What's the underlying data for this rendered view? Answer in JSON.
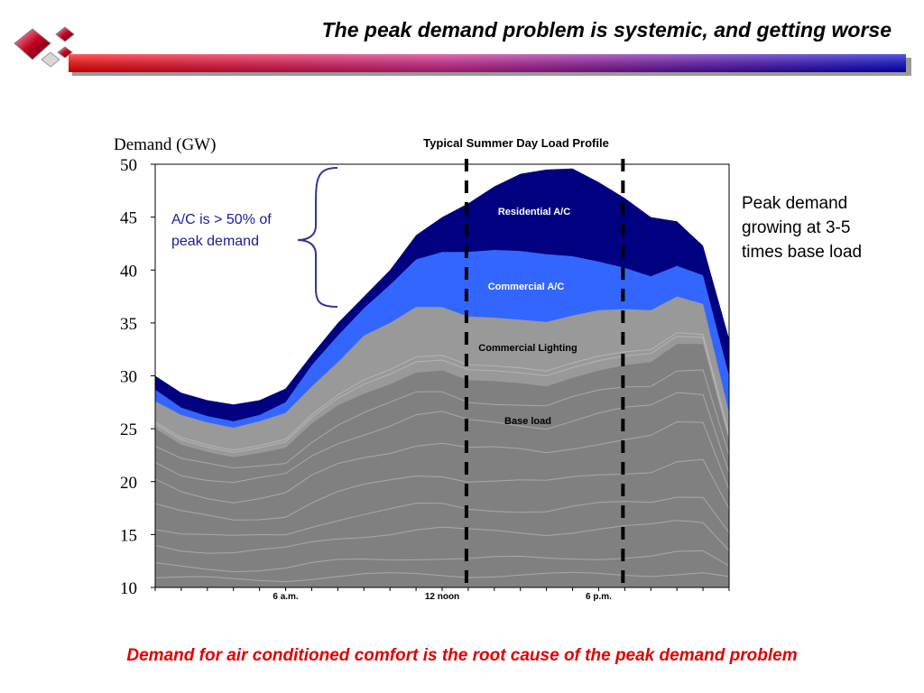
{
  "slide": {
    "title": "The peak demand problem is systemic, and getting worse",
    "footer": "Demand for air conditioned comfort is the root cause of the peak demand problem"
  },
  "colors": {
    "title_bar_left": "#ff0000",
    "title_bar_right": "#0000cc",
    "residential_ac": "#000080",
    "commercial_ac": "#3366ff",
    "commercial_lighting": "#999999",
    "base_load": "#808080",
    "footer_text": "#e00000",
    "callout_text": "#1a1aa0"
  },
  "chart_data": {
    "type": "area",
    "title": "Typical Summer Day Load Profile",
    "ylabel": "Demand (GW)",
    "xlabel": "",
    "ylim": [
      10,
      50
    ],
    "yticks": [
      10,
      15,
      20,
      25,
      30,
      35,
      40,
      45,
      50
    ],
    "x_hours": [
      0,
      1,
      2,
      3,
      4,
      5,
      6,
      7,
      8,
      9,
      10,
      11,
      12,
      13,
      14,
      15,
      16,
      17,
      18,
      19,
      20,
      21,
      22
    ],
    "x_ticks": [
      {
        "hour": 5,
        "label": "6 a.m."
      },
      {
        "hour": 11,
        "label": "12 noon"
      },
      {
        "hour": 17,
        "label": "6 p.m."
      }
    ],
    "peak_window": [
      12,
      18
    ],
    "series": [
      {
        "name": "Base load",
        "top": [
          25.0,
          23.5,
          22.8,
          22.3,
          22.7,
          23.2,
          25.5,
          27.2,
          28.3,
          29.2,
          30.3,
          30.5,
          29.6,
          29.5,
          29.3,
          29.0,
          29.8,
          30.5,
          31.0,
          31.3,
          33.0,
          33.0,
          23.8
        ]
      },
      {
        "name": "Commercial Lighting",
        "top": [
          27.6,
          26.3,
          25.6,
          25.1,
          25.7,
          26.5,
          29.0,
          31.3,
          33.8,
          35.0,
          36.5,
          36.5,
          35.6,
          35.5,
          35.3,
          35.1,
          35.7,
          36.2,
          36.3,
          36.2,
          37.5,
          36.8,
          26.5
        ]
      },
      {
        "name": "Commercial A/C",
        "top": [
          28.7,
          27.0,
          26.2,
          25.7,
          26.3,
          27.5,
          31.0,
          33.8,
          36.4,
          38.6,
          41.0,
          41.7,
          41.7,
          41.9,
          41.8,
          41.5,
          41.3,
          40.8,
          40.2,
          39.4,
          40.4,
          39.5,
          30.0
        ]
      },
      {
        "name": "Residential A/C",
        "top": [
          30.0,
          28.4,
          27.7,
          27.3,
          27.7,
          28.8,
          32.0,
          35.0,
          37.5,
          40.0,
          43.3,
          45.0,
          46.3,
          47.9,
          49.1,
          49.5,
          49.6,
          48.3,
          46.8,
          45.0,
          44.6,
          42.3,
          33.5
        ]
      }
    ],
    "area_labels": [
      "Residential A/C",
      "Commercial A/C",
      "Commercial Lighting",
      "Base load"
    ],
    "callout_left": {
      "line1": "A/C is  > 50% of",
      "line2": "peak demand"
    },
    "callout_right": {
      "line1": "Peak demand",
      "line2": "growing at 3-5",
      "line3": "times base load"
    },
    "legend": "none",
    "grid": false
  }
}
